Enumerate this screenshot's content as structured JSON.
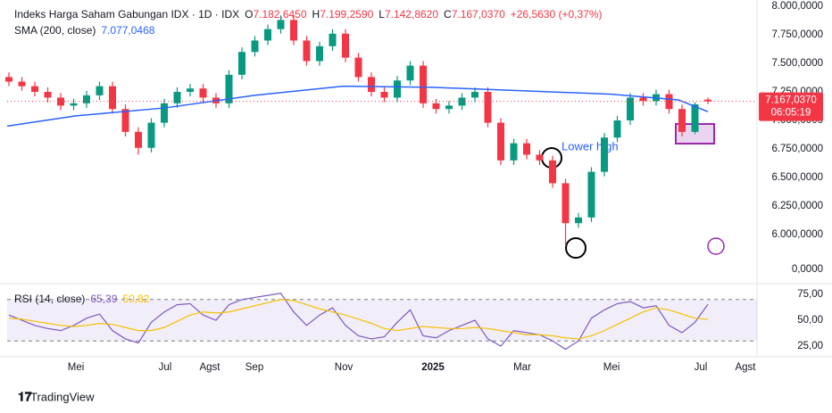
{
  "chart_data": [
    {
      "type": "candlestick",
      "title": "Indeks Harga Saham Gabungan IDX · 1D · IDX",
      "ohlc_legend": [
        {
          "prefix": "O",
          "label": "7.182,6450"
        },
        {
          "prefix": "H",
          "label": "7.199,2590"
        },
        {
          "prefix": "L",
          "label": "7.142,8620"
        },
        {
          "prefix": "C",
          "label": "7.167,0370"
        }
      ],
      "change_label": "+26,5630 (+0,37%)",
      "last_price_label": "7.167,0370",
      "countdown": "06:05:19",
      "annotation": "Lower high",
      "pane_zero_label": "0,0000",
      "up_color": "#089981",
      "down_color": "#f23645",
      "x": [
        2.5,
        2.79,
        3.08,
        3.37,
        3.66,
        3.95,
        4.24,
        4.53,
        4.82,
        5.11,
        5.4,
        5.69,
        5.98,
        6.27,
        6.56,
        6.85,
        7.14,
        7.43,
        7.72,
        8.01,
        8.3,
        8.59,
        8.88,
        9.17,
        9.46,
        9.75,
        10.04,
        10.33,
        10.62,
        10.91,
        11.2,
        11.49,
        11.78,
        12.07,
        12.36,
        12.65,
        12.94,
        13.23,
        13.52,
        13.81,
        14.1,
        14.39,
        14.68,
        14.97,
        15.26,
        15.55,
        15.84,
        16.13,
        16.42,
        16.71,
        17.0,
        17.29,
        17.58,
        17.87,
        18.16
      ],
      "open": [
        7380,
        7340,
        7300,
        7250,
        7200,
        7130,
        7150,
        7220,
        7300,
        7100,
        6900,
        6760,
        6980,
        7150,
        7250,
        7280,
        7200,
        7150,
        7400,
        7600,
        7700,
        7800,
        7880,
        7700,
        7520,
        7650,
        7760,
        7550,
        7380,
        7250,
        7200,
        7350,
        7480,
        7150,
        7100,
        7130,
        7200,
        7250,
        6980,
        6650,
        6800,
        6700,
        6650,
        6450,
        6100,
        6150,
        6550,
        6850,
        7000,
        7200,
        7170,
        7230,
        7100,
        6900,
        7182.645
      ],
      "high": [
        7420,
        7380,
        7340,
        7290,
        7240,
        7190,
        7260,
        7340,
        7340,
        7140,
        6940,
        7020,
        7190,
        7290,
        7320,
        7320,
        7240,
        7440,
        7640,
        7740,
        7840,
        7920,
        7920,
        7740,
        7690,
        7800,
        7800,
        7590,
        7420,
        7290,
        7390,
        7520,
        7520,
        7190,
        7170,
        7240,
        7290,
        7290,
        7020,
        6840,
        6840,
        6740,
        6690,
        6490,
        6190,
        6590,
        6890,
        7040,
        7240,
        7240,
        7270,
        7270,
        7140,
        7160,
        7199.259
      ],
      "low": [
        7300,
        7260,
        7210,
        7160,
        7090,
        7090,
        7110,
        7180,
        7060,
        6860,
        6700,
        6720,
        6940,
        7110,
        7210,
        7160,
        7110,
        7110,
        7360,
        7560,
        7660,
        7760,
        7660,
        7480,
        7480,
        7610,
        7510,
        7340,
        7210,
        7160,
        7160,
        7310,
        7110,
        7060,
        7060,
        7090,
        7160,
        6940,
        6610,
        6610,
        6660,
        6610,
        6410,
        5900,
        6060,
        6110,
        6510,
        6810,
        6960,
        7130,
        7130,
        7060,
        6860,
        6880,
        7142.862
      ],
      "close": [
        7340,
        7300,
        7250,
        7200,
        7130,
        7150,
        7220,
        7300,
        7100,
        6900,
        6760,
        6980,
        7150,
        7250,
        7280,
        7200,
        7150,
        7400,
        7600,
        7700,
        7800,
        7880,
        7700,
        7520,
        7650,
        7760,
        7550,
        7380,
        7250,
        7200,
        7350,
        7480,
        7150,
        7100,
        7130,
        7200,
        7250,
        6980,
        6650,
        6800,
        6700,
        6650,
        6450,
        6100,
        6150,
        6550,
        6850,
        7000,
        7200,
        7170,
        7230,
        7100,
        6900,
        7140.474,
        7167.037
      ],
      "series": [
        {
          "name": "SMA (200, close)",
          "color": "#2962ff",
          "value_label": "7.077,0468",
          "x": [
            2.46,
            4,
            6,
            8,
            10,
            12,
            14,
            16,
            17.5,
            18.16
          ],
          "values": [
            6950,
            7040,
            7110,
            7220,
            7300,
            7290,
            7260,
            7230,
            7180,
            7077.0468
          ]
        }
      ],
      "xlim": [
        2.46,
        19.26
      ],
      "ylim": [
        5789,
        8055
      ],
      "yticks": [
        {
          "value": 6000,
          "label": "6.000,0000"
        },
        {
          "value": 6250,
          "label": "6.250,0000"
        },
        {
          "value": 6500,
          "label": "6.500,0000"
        },
        {
          "value": 6750,
          "label": "6.750,0000"
        },
        {
          "value": 7000,
          "label": "7.000,0000"
        },
        {
          "value": 7250,
          "label": "7.250,0000"
        },
        {
          "value": 7500,
          "label": "7.500,0000"
        },
        {
          "value": 7750,
          "label": "7.750,0000"
        },
        {
          "value": 8000,
          "label": "8.000,0000"
        }
      ]
    },
    {
      "type": "line",
      "title": "RSI (14, close)",
      "band": [
        30,
        70
      ],
      "band_color": "#7e57c2",
      "series": [
        {
          "name": "RSI (14, close)",
          "color": "#7e57c2",
          "value_label": "65,39",
          "values": [
            55,
            50,
            45,
            42,
            40,
            45,
            52,
            56,
            40,
            32,
            28,
            48,
            58,
            65,
            66,
            55,
            50,
            65,
            70,
            72,
            74,
            76,
            58,
            45,
            55,
            62,
            45,
            35,
            32,
            34,
            48,
            60,
            35,
            33,
            40,
            45,
            50,
            32,
            25,
            40,
            38,
            36,
            30,
            22,
            30,
            52,
            60,
            66,
            68,
            62,
            64,
            45,
            38,
            48,
            65.39
          ]
        },
        {
          "color": "#f5c000",
          "value_label": "50,82",
          "values": [
            52,
            51,
            49,
            47,
            45,
            44,
            45,
            47,
            46,
            43,
            40,
            40,
            43,
            49,
            55,
            58,
            57,
            58,
            61,
            64,
            67,
            70,
            69,
            65,
            61,
            58,
            55,
            51,
            47,
            42,
            40,
            42,
            44,
            43,
            42,
            42,
            43,
            42,
            40,
            38,
            36,
            36,
            35,
            33,
            32,
            35,
            40,
            46,
            52,
            58,
            62,
            60,
            56,
            52,
            50.82
          ]
        }
      ],
      "xlim": [
        2.46,
        19.26
      ],
      "ylim": [
        14.7,
        83.6
      ],
      "yticks": [
        {
          "value": 25,
          "label": "25,00"
        },
        {
          "value": 50,
          "label": "50,00"
        },
        {
          "value": 75,
          "label": "75,00"
        }
      ],
      "xticks": [
        {
          "value": 4,
          "label": "Mei"
        },
        {
          "value": 6,
          "label": "Jul"
        },
        {
          "value": 7,
          "label": "Agst"
        },
        {
          "value": 8,
          "label": "Sep"
        },
        {
          "value": 10,
          "label": "Nov"
        },
        {
          "value": 12,
          "label": "2025"
        },
        {
          "value": 14,
          "label": "Mar"
        },
        {
          "value": 16,
          "label": "Mei"
        },
        {
          "value": 18,
          "label": "Jul"
        },
        {
          "value": 19,
          "label": "Agst"
        }
      ]
    }
  ],
  "brand": "TradingView"
}
